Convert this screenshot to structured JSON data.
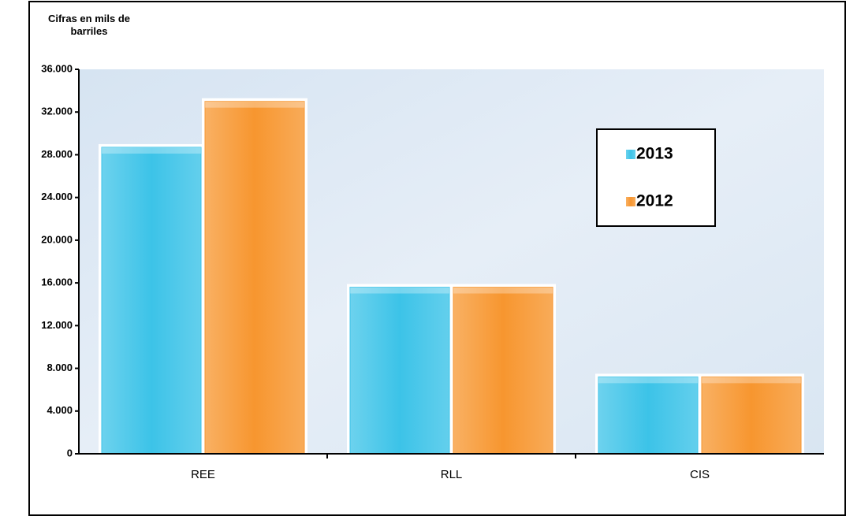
{
  "chart_data": {
    "type": "bar",
    "y_label": "Cifras en mils de barriles",
    "categories": [
      "REE",
      "RLL",
      "CIS"
    ],
    "series": [
      {
        "name": "2013",
        "color": "#3cc3e8",
        "values": [
          28700,
          15600,
          7200
        ]
      },
      {
        "name": "2012",
        "color": "#f7962f",
        "values": [
          33000,
          15600,
          7200
        ]
      }
    ],
    "ylim": [
      0,
      36000
    ],
    "yticks": [
      0,
      {
        "value": 4000,
        "label": "4.000"
      },
      {
        "value": 8000,
        "label": "8.000"
      },
      {
        "value": 12000,
        "label": "12.000"
      },
      {
        "value": 16000,
        "label": "16.000"
      },
      {
        "value": 20000,
        "label": "20.000"
      },
      {
        "value": 24000,
        "label": "24.000"
      },
      {
        "value": 28000,
        "label": "28.000"
      },
      {
        "value": 32000,
        "label": "32.000"
      },
      {
        "value": 36000,
        "label": "36.000"
      }
    ],
    "legend": "upper right"
  }
}
